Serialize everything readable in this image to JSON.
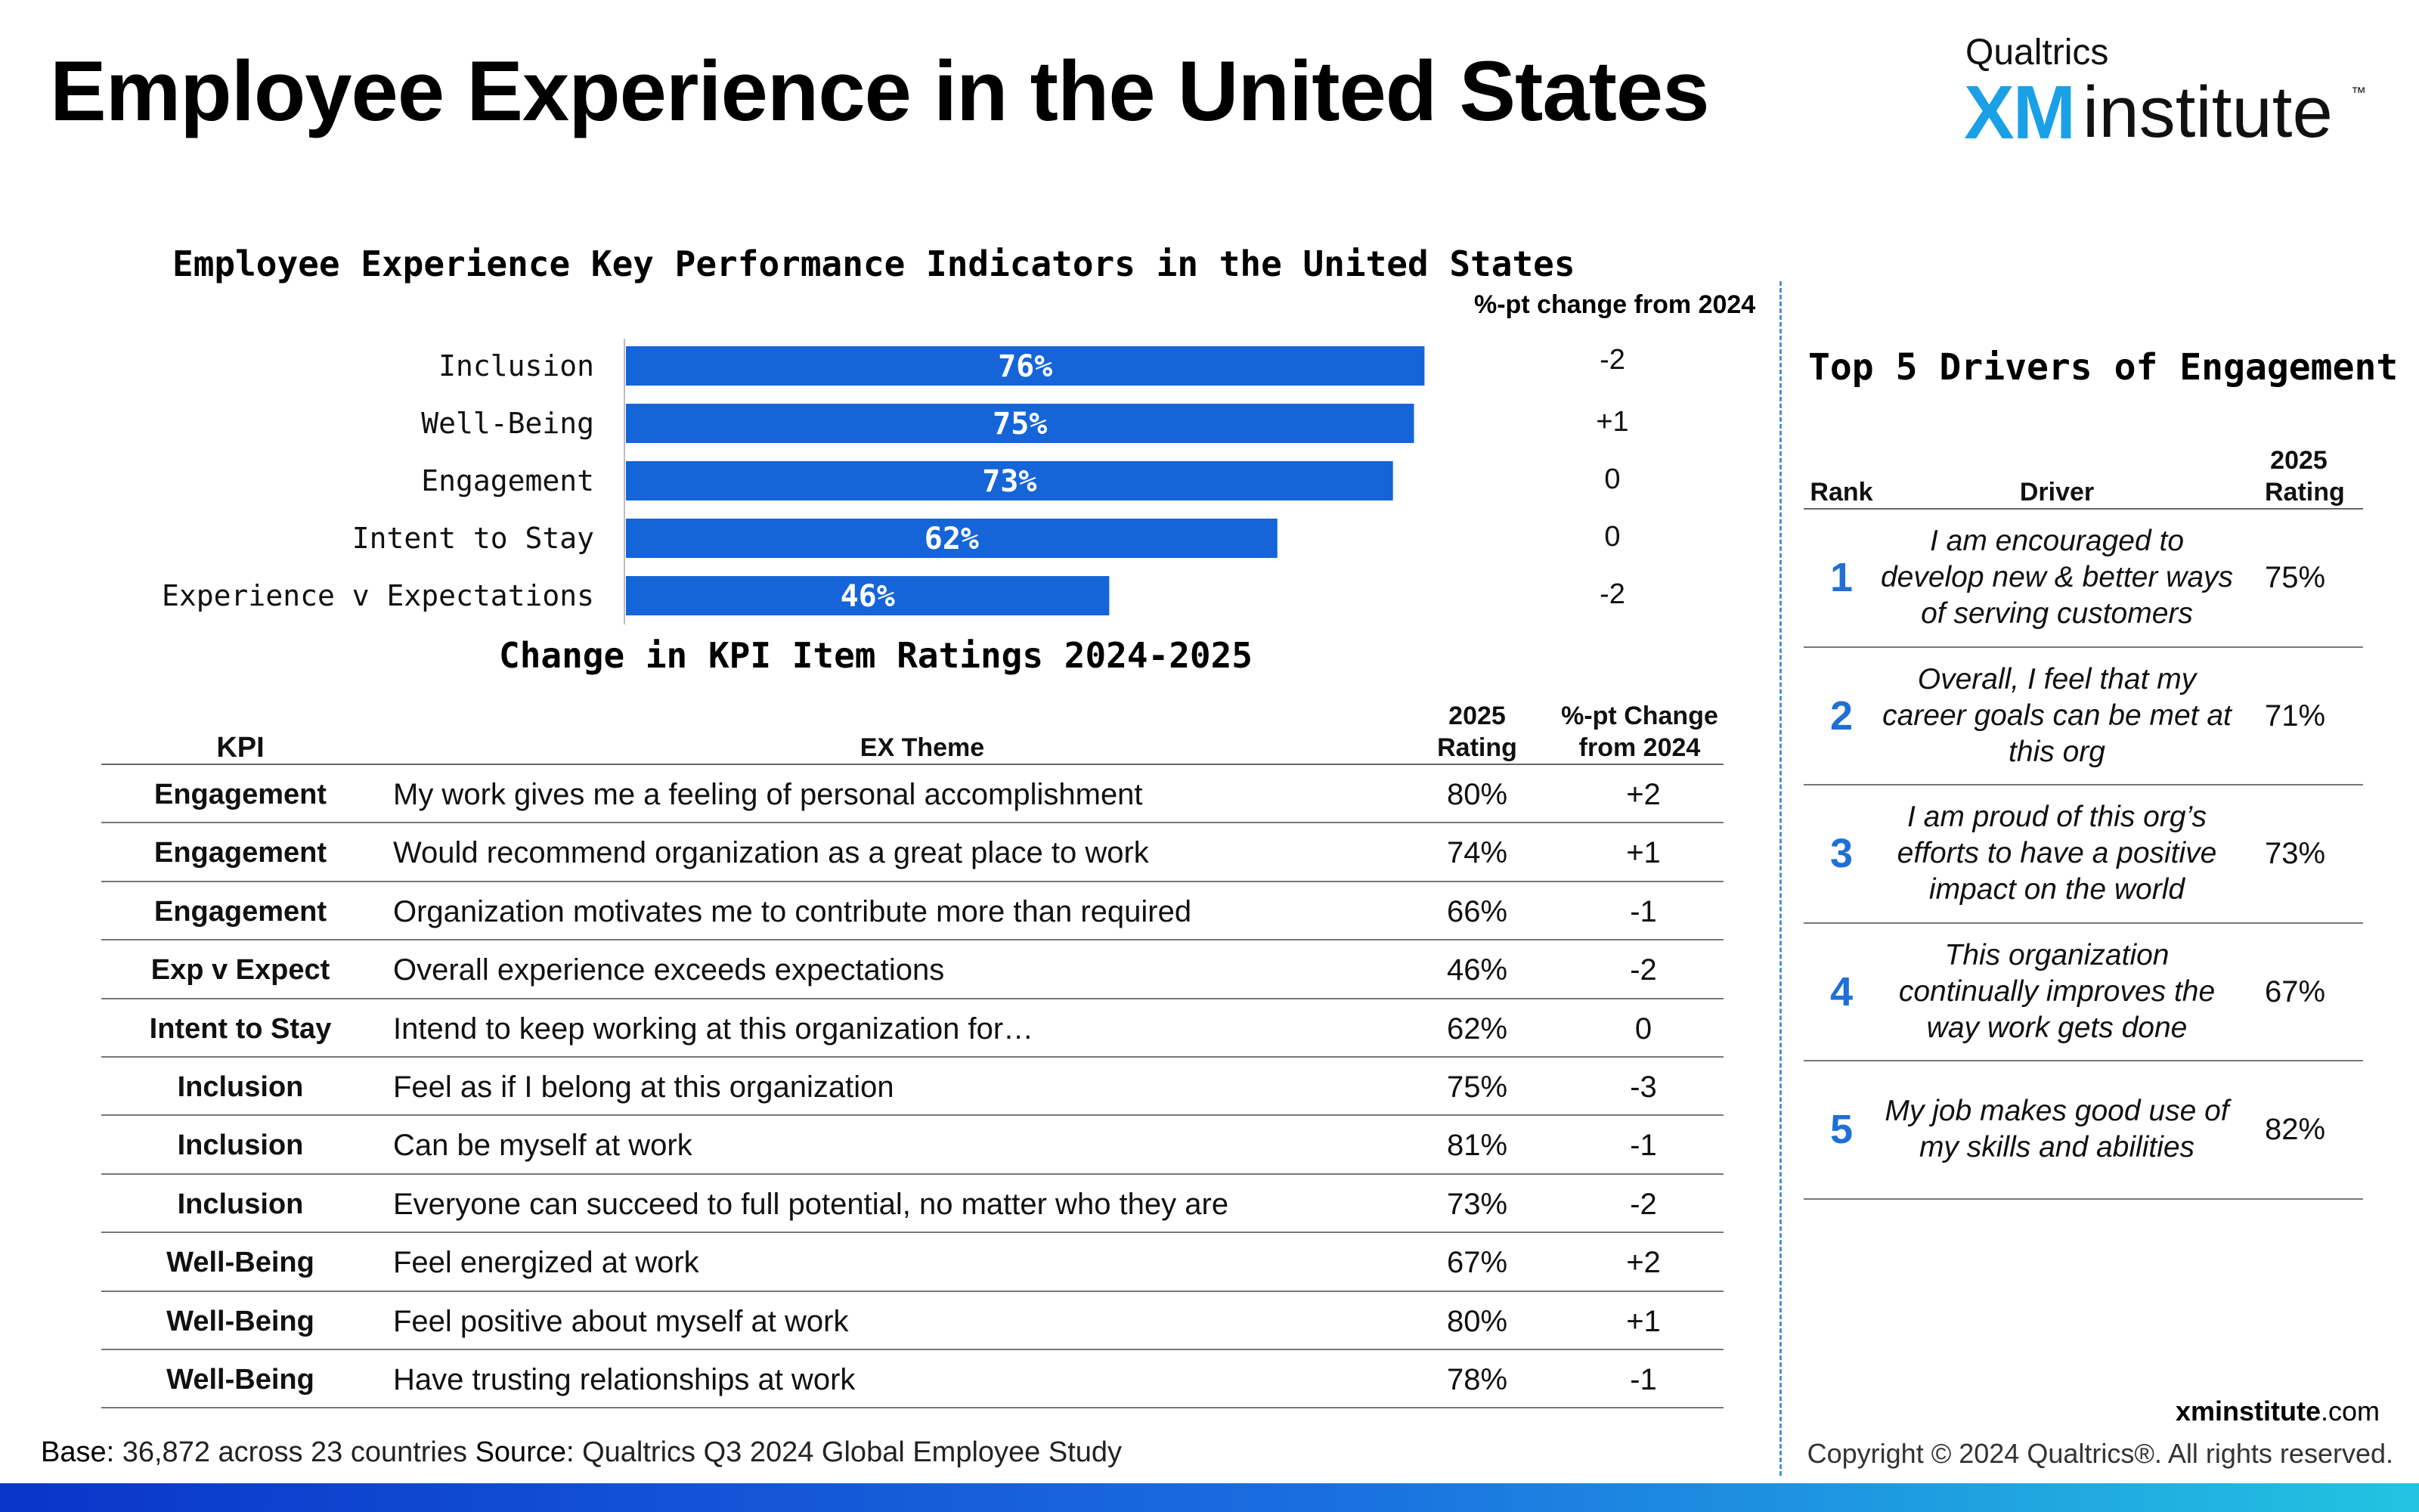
{
  "page": {
    "title": "Employee Experience in the United States"
  },
  "logo": {
    "top": "Qualtrics",
    "xm": "XM",
    "institute": "institute",
    "tm": "™"
  },
  "chart_data": {
    "type": "bar",
    "orientation": "horizontal",
    "title": "Employee Experience Key Performance Indicators in the United States",
    "categories": [
      "Inclusion",
      "Well-Being",
      "Engagement",
      "Intent to Stay",
      "Experience v Expectations"
    ],
    "values": [
      76,
      75,
      73,
      62,
      46
    ],
    "value_labels": [
      "76%",
      "75%",
      "73%",
      "62%",
      "46%"
    ],
    "change_header": "%-pt change from 2024",
    "changes": [
      "-2",
      "+1",
      "0",
      "0",
      "-2"
    ],
    "xlim": [
      0,
      100
    ],
    "color": "#1565d8",
    "grid": false
  },
  "kpi_table": {
    "title": "Change in KPI Item Ratings 2024-2025",
    "headers": {
      "kpi": "KPI",
      "theme": "EX Theme",
      "rating": "2025 Rating",
      "change": "%-pt Change from 2024"
    },
    "rows": [
      {
        "kpi": "Engagement",
        "theme": "My work gives me a feeling of personal accomplishment",
        "rating": "80%",
        "change": "+2"
      },
      {
        "kpi": "Engagement",
        "theme": "Would recommend organization as a great place to work",
        "rating": "74%",
        "change": "+1"
      },
      {
        "kpi": "Engagement",
        "theme": "Organization motivates me to contribute more than required",
        "rating": "66%",
        "change": "-1"
      },
      {
        "kpi": "Exp v Expect",
        "theme": "Overall experience exceeds expectations",
        "rating": "46%",
        "change": "-2"
      },
      {
        "kpi": "Intent to Stay",
        "theme": "Intend to keep working at this organization for…",
        "rating": "62%",
        "change": "0"
      },
      {
        "kpi": "Inclusion",
        "theme": "Feel as if I belong at this organization",
        "rating": "75%",
        "change": "-3"
      },
      {
        "kpi": "Inclusion",
        "theme": "Can be myself at work",
        "rating": "81%",
        "change": "-1"
      },
      {
        "kpi": "Inclusion",
        "theme": "Everyone can succeed to full potential, no matter who they are",
        "rating": "73%",
        "change": "-2"
      },
      {
        "kpi": "Well-Being",
        "theme": "Feel energized at work",
        "rating": "67%",
        "change": "+2"
      },
      {
        "kpi": "Well-Being",
        "theme": "Feel positive about myself at work",
        "rating": "80%",
        "change": "+1"
      },
      {
        "kpi": "Well-Being",
        "theme": "Have trusting relationships at work",
        "rating": "78%",
        "change": "-1"
      }
    ]
  },
  "drivers": {
    "title": "Top 5 Drivers of Engagement",
    "headers": {
      "rank": "Rank",
      "driver": "Driver",
      "rating": "2025 Rating"
    },
    "rows": [
      {
        "rank": "1",
        "text": "I am encouraged to develop new & better ways of serving customers",
        "rating": "75%"
      },
      {
        "rank": "2",
        "text": "Overall, I feel that my career goals can be met at this org",
        "rating": "71%"
      },
      {
        "rank": "3",
        "text": "I am proud of this org’s efforts to have a positive impact on the world",
        "rating": "73%"
      },
      {
        "rank": "4",
        "text": "This organization continually improves the way work gets done",
        "rating": "67%"
      },
      {
        "rank": "5",
        "text": "My job makes good use of my skills and abilities",
        "rating": "82%"
      }
    ]
  },
  "footer": {
    "base_label": "Base:",
    "base_value": "36,872 across 23 countries",
    "source_label": "Source:",
    "source_value": "Qualtrics Q3 2024 Global Employee Study",
    "site_bold": "xminstitute",
    "site_rest": ".com",
    "copyright": "Copyright © 2024 Qualtrics®. All rights reserved."
  },
  "colors": {
    "bar": "#1565d8",
    "rank": "#1f6fd6",
    "divider": "#4a8fd4",
    "logo_xm": "#1aa0e6"
  }
}
